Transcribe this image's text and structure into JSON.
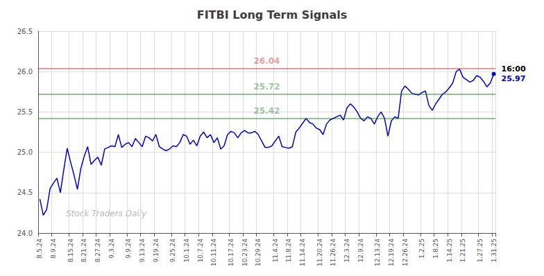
{
  "chart_data": {
    "type": "line",
    "title": "FITBI Long Term Signals",
    "color": "#0000cc",
    "categories": [
      "8.5.24",
      null,
      null,
      null,
      "8.9.24",
      null,
      null,
      null,
      null,
      "8.15.24",
      null,
      null,
      null,
      "8.21.24",
      null,
      null,
      null,
      "8.27.24",
      null,
      null,
      null,
      "9.3.24",
      null,
      null,
      null,
      null,
      "9.9.24",
      null,
      null,
      null,
      "9.13.24",
      null,
      null,
      null,
      "9.19.24",
      null,
      null,
      null,
      null,
      "9.25.24",
      null,
      null,
      null,
      "10.1.24",
      null,
      null,
      null,
      "10.7.24",
      null,
      null,
      null,
      "10.11.24",
      null,
      null,
      null,
      null,
      "10.17.24",
      null,
      null,
      null,
      "10.23.24",
      null,
      null,
      null,
      "10.29.24",
      null,
      null,
      null,
      null,
      "11.4.24",
      null,
      null,
      null,
      "11.8.24",
      null,
      null,
      null,
      "11.14.24",
      null,
      null,
      null,
      null,
      "11.20.24",
      null,
      null,
      null,
      "11.26.24",
      null,
      null,
      null,
      "12.3.24",
      null,
      null,
      null,
      "12.9.24",
      null,
      null,
      null,
      null,
      "12.13.24",
      null,
      null,
      null,
      "12.19.24",
      null,
      null,
      null,
      "12.26.24",
      null,
      null,
      null,
      null,
      "1.2.25",
      null,
      null,
      null,
      "1.8.25",
      null,
      null,
      null,
      "1.14.25",
      null,
      null,
      null,
      "1.21.25",
      null,
      null,
      null,
      null,
      "1.27.25",
      null,
      null,
      null,
      "1.31.25"
    ],
    "values": [
      24.42,
      24.22,
      24.29,
      24.55,
      24.62,
      24.68,
      24.5,
      24.78,
      25.05,
      24.88,
      24.72,
      24.54,
      24.8,
      24.95,
      25.07,
      24.85,
      24.9,
      24.94,
      24.84,
      25.04,
      25.06,
      25.08,
      25.07,
      25.22,
      25.06,
      25.1,
      25.12,
      25.07,
      25.17,
      25.12,
      25.07,
      25.2,
      25.18,
      25.14,
      25.22,
      25.07,
      25.04,
      25.02,
      25.04,
      25.08,
      25.07,
      25.12,
      25.22,
      25.2,
      25.1,
      25.15,
      25.08,
      25.2,
      25.25,
      25.18,
      25.22,
      25.12,
      25.18,
      25.04,
      25.08,
      25.22,
      25.26,
      25.24,
      25.18,
      25.24,
      25.27,
      25.24,
      25.24,
      25.26,
      25.22,
      25.14,
      25.06,
      25.06,
      25.08,
      25.14,
      25.2,
      25.07,
      25.06,
      25.05,
      25.07,
      25.25,
      25.3,
      25.36,
      25.42,
      25.37,
      25.35,
      25.3,
      25.28,
      25.22,
      25.35,
      25.4,
      25.42,
      25.44,
      25.46,
      25.4,
      25.55,
      25.6,
      25.56,
      25.5,
      25.42,
      25.39,
      25.44,
      25.42,
      25.35,
      25.44,
      25.5,
      25.42,
      25.2,
      25.39,
      25.44,
      25.42,
      25.76,
      25.82,
      25.78,
      25.73,
      25.72,
      25.71,
      25.74,
      25.76,
      25.58,
      25.52,
      25.6,
      25.66,
      25.72,
      25.75,
      25.8,
      25.86,
      26.0,
      26.03,
      25.93,
      25.9,
      25.87,
      25.89,
      25.95,
      25.93,
      25.88,
      25.81,
      25.86,
      25.97
    ],
    "ylim": [
      24.0,
      26.5
    ],
    "yticks": [
      {
        "value": 24.0,
        "label": "24.0"
      },
      {
        "value": 24.5,
        "label": "24.5"
      },
      {
        "value": 25.0,
        "label": "25.0"
      },
      {
        "value": 25.5,
        "label": "25.5"
      },
      {
        "value": 26.0,
        "label": "26.0"
      },
      {
        "value": 26.5,
        "label": "26.5"
      }
    ],
    "grid": true,
    "reference_lines": [
      {
        "value": 26.04,
        "label": "26.04",
        "color": "#cc0000"
      },
      {
        "value": 25.72,
        "label": "25.72",
        "color": "#006600"
      },
      {
        "value": 25.42,
        "label": "25.42",
        "color": "#006600"
      }
    ],
    "annotations": [
      {
        "text": "16:00",
        "anchor": "last_point"
      },
      {
        "text": "25.97",
        "anchor": "last_point",
        "color": "#0000cc"
      },
      {
        "text": "Stock Traders Daily",
        "anchor": "watermark",
        "color": "#bbbbbb"
      }
    ]
  }
}
